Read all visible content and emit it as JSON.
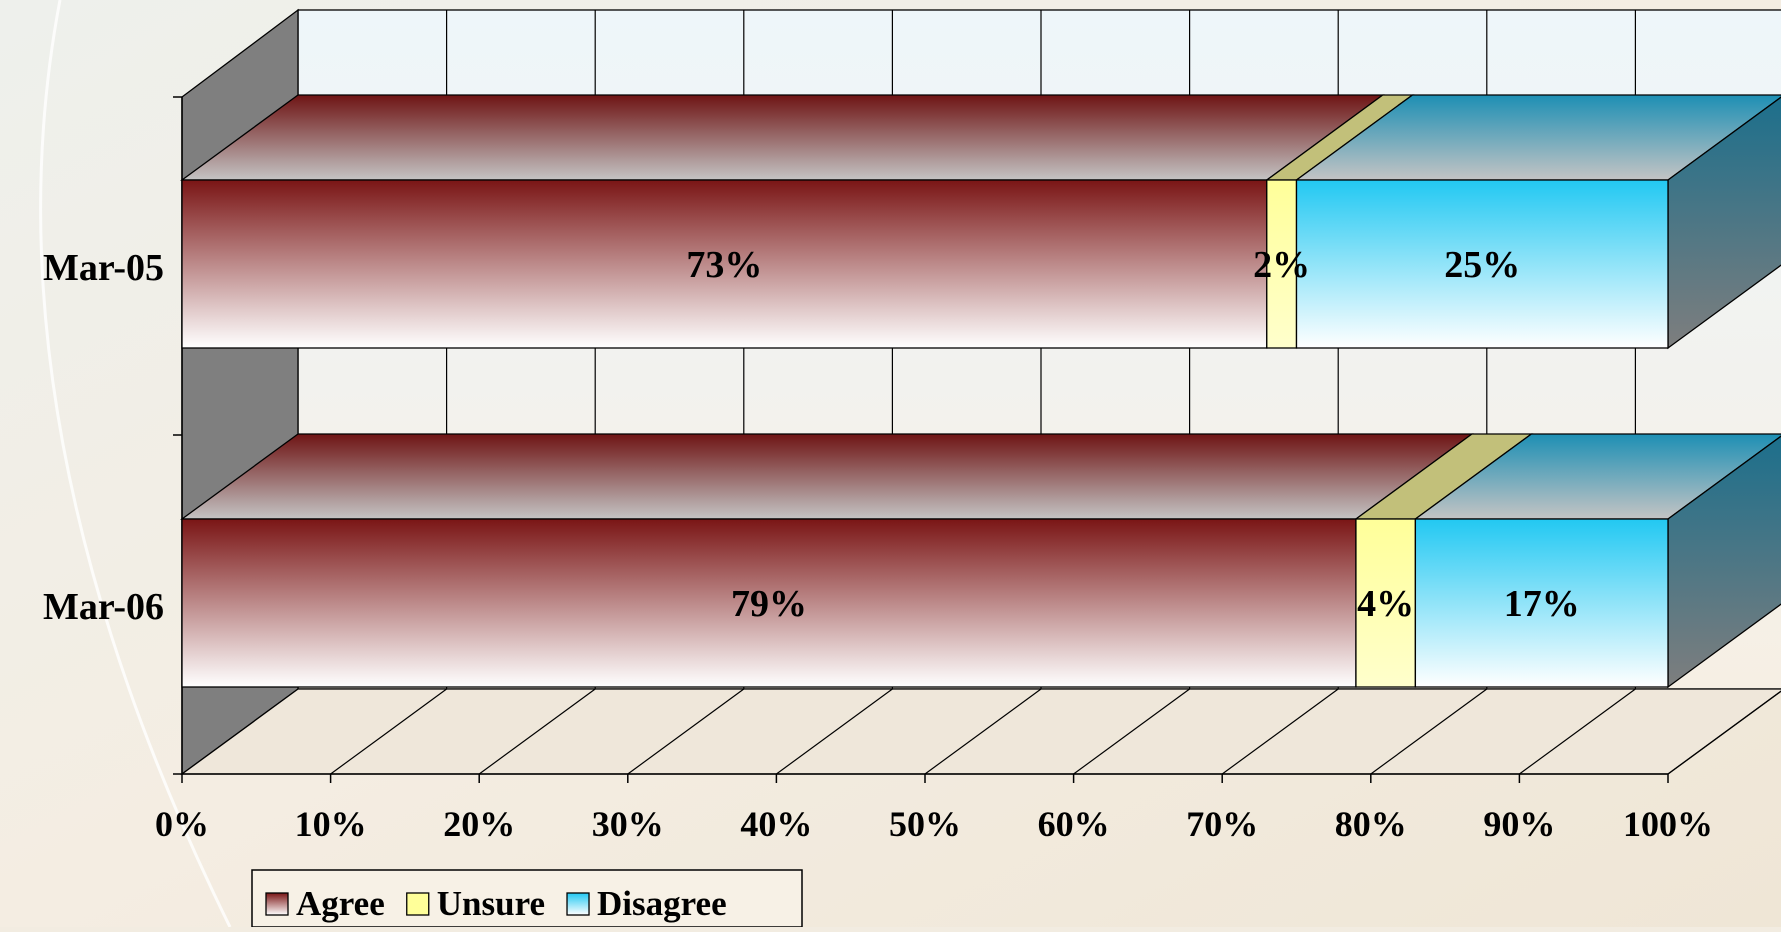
{
  "chart_data": {
    "type": "bar",
    "orientation": "horizontal",
    "stacked": true,
    "percent_stacked": true,
    "three_d": true,
    "title": "",
    "xlabel": "",
    "ylabel": "",
    "categories": [
      "Mar-05",
      "Mar-06"
    ],
    "series": [
      {
        "name": "Agree",
        "values": [
          73,
          79
        ],
        "labels": [
          "73%",
          "79%"
        ],
        "color": "#7a1515"
      },
      {
        "name": "Unsure",
        "values": [
          2,
          4
        ],
        "labels": [
          "2%",
          "4%"
        ],
        "color": "#ffff99"
      },
      {
        "name": "Disagree",
        "values": [
          25,
          17
        ],
        "labels": [
          "25%",
          "17%"
        ],
        "color": "#22c8f2"
      }
    ],
    "xlim": [
      0,
      100
    ],
    "xticks": [
      "0%",
      "10%",
      "20%",
      "30%",
      "40%",
      "50%",
      "60%",
      "70%",
      "80%",
      "90%",
      "100%"
    ],
    "grid": true,
    "legend": {
      "position": "bottom-left"
    }
  }
}
